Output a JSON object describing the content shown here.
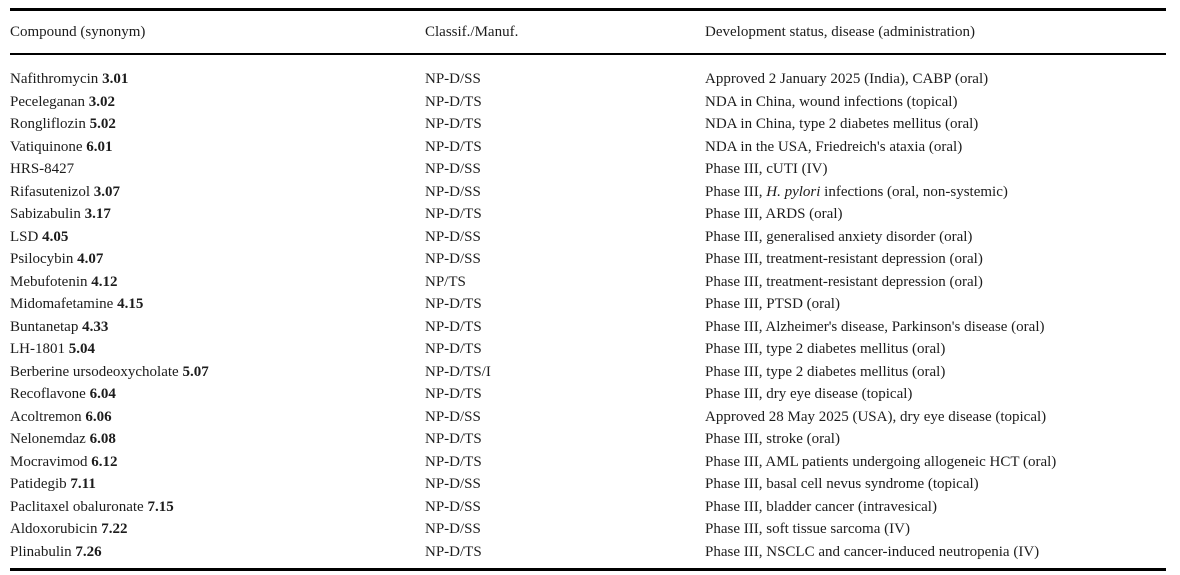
{
  "colors": {
    "background": "#ffffff",
    "text": "#1c1c1c",
    "rule": "#000000"
  },
  "table": {
    "columns": [
      {
        "label": "Compound (synonym)"
      },
      {
        "label": "Classif./Manuf."
      },
      {
        "label": "Development status, disease (administration)"
      }
    ],
    "rows": [
      {
        "compound": "Nafithromycin",
        "number": "3.01",
        "classif": "NP-D/SS",
        "status": [
          {
            "text": "Approved 2 January 2025 (India), CABP (oral)"
          }
        ]
      },
      {
        "compound": "Peceleganan",
        "number": "3.02",
        "classif": "NP-D/TS",
        "status": [
          {
            "text": "NDA in China, wound infections (topical)"
          }
        ]
      },
      {
        "compound": "Rongliflozin",
        "number": "5.02",
        "classif": "NP-D/TS",
        "status": [
          {
            "text": "NDA in China, type 2 diabetes mellitus (oral)"
          }
        ]
      },
      {
        "compound": "Vatiquinone",
        "number": "6.01",
        "classif": "NP-D/TS",
        "status": [
          {
            "text": "NDA in the USA, Friedreich's ataxia (oral)"
          }
        ]
      },
      {
        "compound": "HRS-8427",
        "number": "",
        "classif": "NP-D/SS",
        "status": [
          {
            "text": "Phase III, cUTI (IV)"
          }
        ]
      },
      {
        "compound": "Rifasutenizol",
        "number": "3.07",
        "classif": "NP-D/SS",
        "status": [
          {
            "text": "Phase III, "
          },
          {
            "text": "H. pylori",
            "italic": true
          },
          {
            "text": " infections (oral, non-systemic)"
          }
        ]
      },
      {
        "compound": "Sabizabulin",
        "number": "3.17",
        "classif": "NP-D/TS",
        "status": [
          {
            "text": "Phase III, ARDS (oral)"
          }
        ]
      },
      {
        "compound": "LSD",
        "number": "4.05",
        "classif": "NP-D/SS",
        "status": [
          {
            "text": "Phase III, generalised anxiety disorder (oral)"
          }
        ]
      },
      {
        "compound": "Psilocybin",
        "number": "4.07",
        "classif": "NP-D/SS",
        "status": [
          {
            "text": "Phase III, treatment-resistant depression (oral)"
          }
        ]
      },
      {
        "compound": "Mebufotenin",
        "number": "4.12",
        "classif": "NP/TS",
        "status": [
          {
            "text": "Phase III, treatment-resistant depression (oral)"
          }
        ]
      },
      {
        "compound": "Midomafetamine",
        "number": "4.15",
        "classif": "NP-D/TS",
        "status": [
          {
            "text": "Phase III, PTSD (oral)"
          }
        ]
      },
      {
        "compound": "Buntanetap",
        "number": "4.33",
        "classif": "NP-D/TS",
        "status": [
          {
            "text": "Phase III, Alzheimer's disease, Parkinson's disease (oral)"
          }
        ]
      },
      {
        "compound": "LH-1801",
        "number": "5.04",
        "classif": "NP-D/TS",
        "status": [
          {
            "text": "Phase III, type 2 diabetes mellitus (oral)"
          }
        ]
      },
      {
        "compound": "Berberine ursodeoxycholate",
        "number": "5.07",
        "classif": "NP-D/TS/I",
        "status": [
          {
            "text": "Phase III, type 2 diabetes mellitus (oral)"
          }
        ]
      },
      {
        "compound": "Recoflavone",
        "number": "6.04",
        "classif": "NP-D/TS",
        "status": [
          {
            "text": "Phase III, dry eye disease (topical)"
          }
        ]
      },
      {
        "compound": "Acoltremon",
        "number": "6.06",
        "classif": "NP-D/SS",
        "status": [
          {
            "text": "Approved 28 May 2025 (USA), dry eye disease (topical)"
          }
        ]
      },
      {
        "compound": "Nelonemdaz",
        "number": "6.08",
        "classif": "NP-D/TS",
        "status": [
          {
            "text": "Phase III, stroke (oral)"
          }
        ]
      },
      {
        "compound": "Mocravimod",
        "number": "6.12",
        "classif": "NP-D/TS",
        "status": [
          {
            "text": "Phase III, AML patients undergoing allogeneic HCT (oral)"
          }
        ]
      },
      {
        "compound": "Patidegib",
        "number": "7.11",
        "classif": "NP-D/SS",
        "status": [
          {
            "text": "Phase III, basal cell nevus syndrome (topical)"
          }
        ]
      },
      {
        "compound": "Paclitaxel obaluronate",
        "number": "7.15",
        "classif": "NP-D/SS",
        "status": [
          {
            "text": "Phase III, bladder cancer (intravesical)"
          }
        ]
      },
      {
        "compound": "Aldoxorubicin",
        "number": "7.22",
        "classif": "NP-D/SS",
        "status": [
          {
            "text": "Phase III, soft tissue sarcoma (IV)"
          }
        ]
      },
      {
        "compound": "Plinabulin",
        "number": "7.26",
        "classif": "NP-D/TS",
        "status": [
          {
            "text": "Phase III, NSCLC and cancer-induced neutropenia (IV)"
          }
        ]
      }
    ]
  }
}
